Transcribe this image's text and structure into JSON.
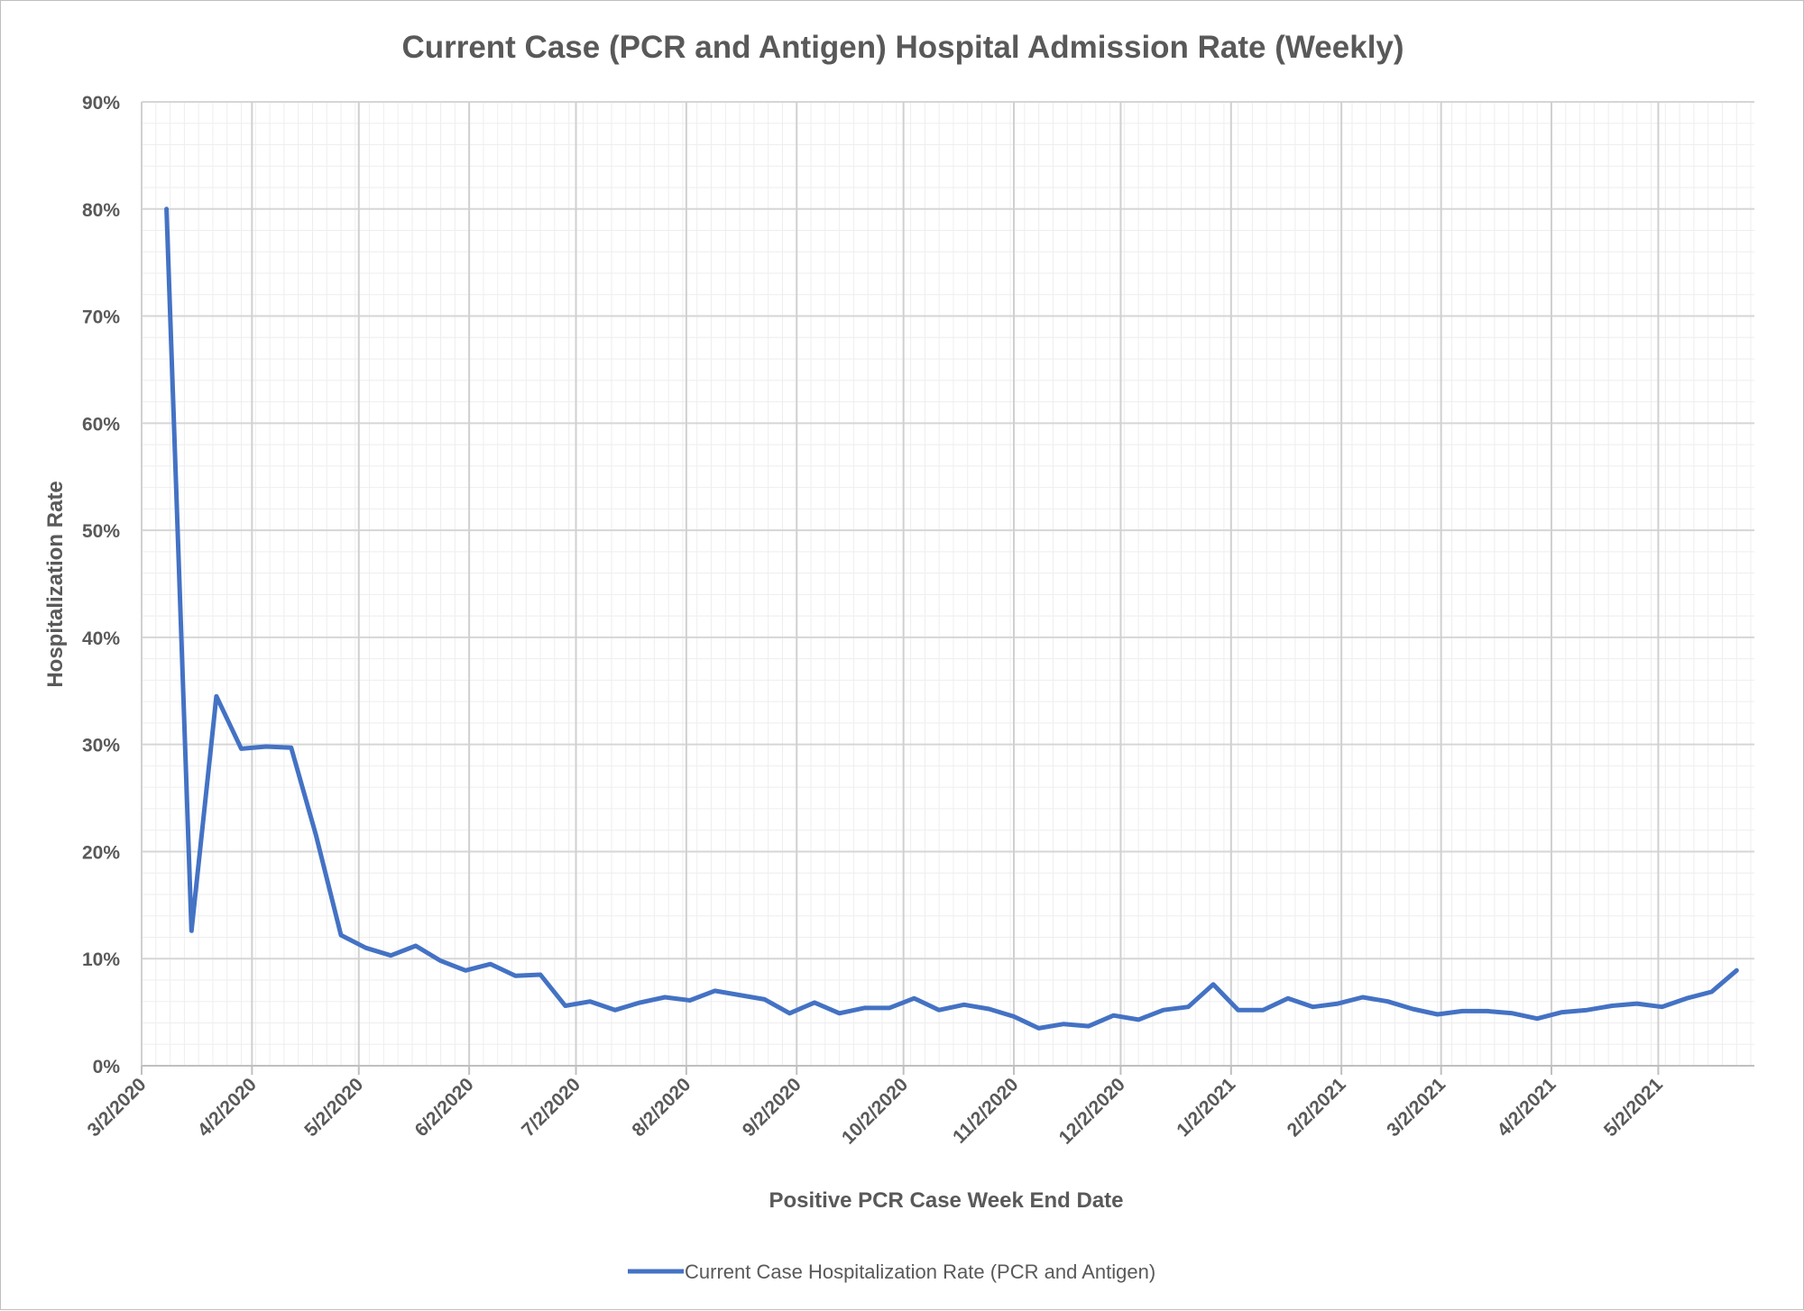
{
  "chart_data": {
    "type": "line",
    "title": "Current Case (PCR and Antigen) Hospital Admission Rate (Weekly)",
    "xlabel": "Positive PCR Case Week End Date",
    "ylabel": "Hospitalization Rate",
    "y_ticks": [
      "0%",
      "10%",
      "20%",
      "30%",
      "40%",
      "50%",
      "60%",
      "70%",
      "80%",
      "90%"
    ],
    "ylim": [
      0,
      90
    ],
    "x_ticks": [
      "3/2/2020",
      "4/2/2020",
      "5/2/2020",
      "6/2/2020",
      "7/2/2020",
      "8/2/2020",
      "9/2/2020",
      "10/2/2020",
      "11/2/2020",
      "12/2/2020",
      "1/2/2021",
      "2/2/2021",
      "3/2/2021",
      "4/2/2021",
      "5/2/2021"
    ],
    "xlim": [
      "3/2/2020",
      "5/29/2021"
    ],
    "grid": true,
    "legend_position": "bottom",
    "series": [
      {
        "name": "Current Case Hospitalization Rate (PCR and Antigen)",
        "color": "#4472c4",
        "points": [
          [
            "3/9/2020",
            80.0
          ],
          [
            "3/16/2020",
            12.6
          ],
          [
            "3/23/2020",
            34.5
          ],
          [
            "3/30/2020",
            29.6
          ],
          [
            "4/6/2020",
            29.8
          ],
          [
            "4/13/2020",
            29.7
          ],
          [
            "4/20/2020",
            21.5
          ],
          [
            "4/27/2020",
            12.2
          ],
          [
            "5/4/2020",
            11.0
          ],
          [
            "5/11/2020",
            10.3
          ],
          [
            "5/18/2020",
            11.2
          ],
          [
            "5/25/2020",
            9.8
          ],
          [
            "6/1/2020",
            8.9
          ],
          [
            "6/8/2020",
            9.5
          ],
          [
            "6/15/2020",
            8.4
          ],
          [
            "6/22/2020",
            8.5
          ],
          [
            "6/29/2020",
            5.6
          ],
          [
            "7/6/2020",
            6.0
          ],
          [
            "7/13/2020",
            5.2
          ],
          [
            "7/20/2020",
            5.9
          ],
          [
            "7/27/2020",
            6.4
          ],
          [
            "8/3/2020",
            6.1
          ],
          [
            "8/10/2020",
            7.0
          ],
          [
            "8/17/2020",
            6.6
          ],
          [
            "8/24/2020",
            6.2
          ],
          [
            "8/31/2020",
            4.9
          ],
          [
            "9/7/2020",
            5.9
          ],
          [
            "9/14/2020",
            4.9
          ],
          [
            "9/21/2020",
            5.4
          ],
          [
            "9/28/2020",
            5.4
          ],
          [
            "10/5/2020",
            6.3
          ],
          [
            "10/12/2020",
            5.2
          ],
          [
            "10/19/2020",
            5.7
          ],
          [
            "10/26/2020",
            5.3
          ],
          [
            "11/2/2020",
            4.6
          ],
          [
            "11/9/2020",
            3.5
          ],
          [
            "11/16/2020",
            3.9
          ],
          [
            "11/23/2020",
            3.7
          ],
          [
            "11/30/2020",
            4.7
          ],
          [
            "12/7/2020",
            4.3
          ],
          [
            "12/14/2020",
            5.2
          ],
          [
            "12/21/2020",
            5.5
          ],
          [
            "12/28/2020",
            7.6
          ],
          [
            "1/4/2021",
            5.2
          ],
          [
            "1/11/2021",
            5.2
          ],
          [
            "1/18/2021",
            6.3
          ],
          [
            "1/25/2021",
            5.5
          ],
          [
            "2/1/2021",
            5.8
          ],
          [
            "2/8/2021",
            6.4
          ],
          [
            "2/15/2021",
            6.0
          ],
          [
            "2/22/2021",
            5.3
          ],
          [
            "3/1/2021",
            4.8
          ],
          [
            "3/8/2021",
            5.1
          ],
          [
            "3/15/2021",
            5.1
          ],
          [
            "3/22/2021",
            4.9
          ],
          [
            "3/29/2021",
            4.4
          ],
          [
            "4/5/2021",
            5.0
          ],
          [
            "4/12/2021",
            5.2
          ],
          [
            "4/19/2021",
            5.6
          ],
          [
            "4/26/2021",
            5.8
          ],
          [
            "5/3/2021",
            5.5
          ],
          [
            "5/10/2021",
            6.3
          ],
          [
            "5/17/2021",
            6.9
          ],
          [
            "5/24/2021",
            8.9
          ]
        ]
      }
    ]
  }
}
